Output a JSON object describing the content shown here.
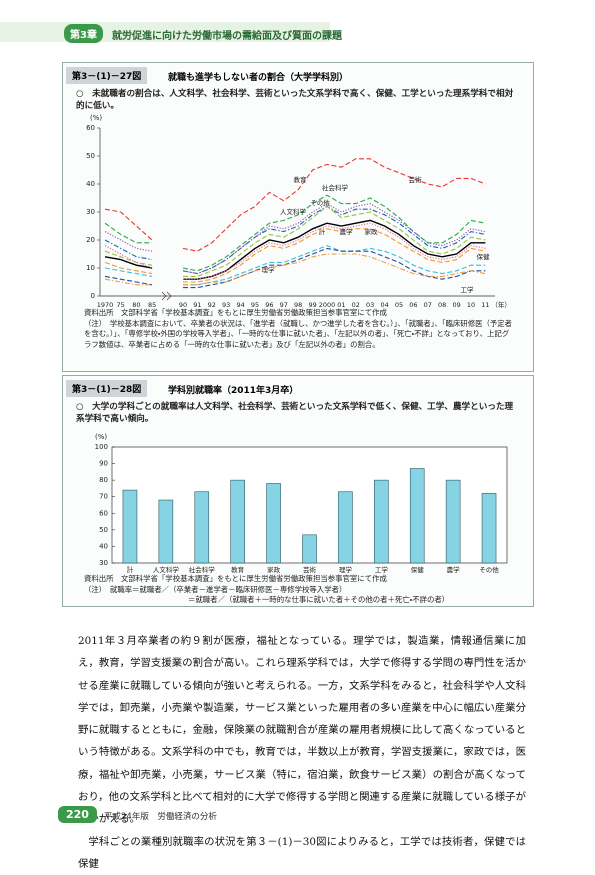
{
  "header": {
    "chapter": "第3章",
    "title": "就労促進に向けた労働市場の需給面及び質面の課題"
  },
  "figures": [
    {
      "number": "第3－(1)－27図",
      "title": "就職も進学もしない者の割合（大学学科別）",
      "summary": "○　未就職者の割合は、人文科学、社会科学、芸術といった文系学科で高く、保健、工学といった理系学科で相対的に低い。",
      "chart_data": {
        "type": "line",
        "y_label": "(%)",
        "x_label": "（年）",
        "categories": [
          "1970",
          "75",
          "80",
          "85",
          "90",
          "91",
          "92",
          "93",
          "94",
          "95",
          "96",
          "97",
          "98",
          "99",
          "2000",
          "01",
          "02",
          "03",
          "04",
          "05",
          "06",
          "07",
          "08",
          "09",
          "10",
          "11"
        ],
        "ylim": [
          0,
          60
        ],
        "yticks": [
          0,
          10,
          20,
          30,
          40,
          50,
          60
        ],
        "series": [
          {
            "name": "芸術",
            "color": "#e8392f",
            "style": "dashed",
            "values": [
              31,
              30,
              25,
              20,
              17,
              16,
              19,
              24,
              29,
              32,
              37,
              34,
              38,
              45,
              47,
              46,
              49,
              49,
              46,
              44,
              42,
              40,
              39,
              42,
              42,
              40
            ]
          },
          {
            "name": "教育",
            "color": "#2aa84a",
            "style": "dashed",
            "values": [
              26,
              22,
              19,
              19,
              10,
              9,
              11,
              14,
              18,
              22,
              26,
              27,
              29,
              33,
              36,
              33,
              33,
              35,
              32,
              28,
              23,
              19,
              19,
              22,
              27,
              26
            ]
          },
          {
            "name": "社会科学",
            "color": "#1c5fb5",
            "style": "dashdot",
            "values": [
              20,
              17,
              14,
              13,
              9,
              8,
              10,
              13,
              17,
              21,
              24,
              23,
              25,
              29,
              32,
              29,
              31,
              31,
              29,
              26,
              22,
              18,
              17,
              19,
              23,
              22
            ]
          },
          {
            "name": "人文科学",
            "color": "#8a4fa8",
            "style": "dotted",
            "values": [
              23,
              20,
              17,
              16,
              9,
              8,
              10,
              13,
              17,
              21,
              25,
              24,
              26,
              30,
              33,
              30,
              32,
              33,
              30,
              27,
              23,
              19,
              18,
              20,
              24,
              23
            ]
          },
          {
            "name": "その他",
            "color": "#9ac13c",
            "style": "dashed",
            "values": [
              16,
              14,
              12,
              11,
              7,
              7,
              9,
              11,
              15,
              19,
              22,
              21,
              24,
              28,
              32,
              28,
              29,
              30,
              27,
              24,
              20,
              16,
              15,
              17,
              21,
              20
            ]
          },
          {
            "name": "計",
            "color": "#000000",
            "style": "solid",
            "values": [
              14,
              13,
              11,
              10,
              6,
              6,
              7,
              9,
              13,
              17,
              20,
              19,
              21,
              24,
              26,
              25,
              26,
              27,
              25,
              22,
              18,
              15,
              14,
              15,
              19,
              19
            ]
          },
          {
            "name": "農学",
            "color": "#f09a2a",
            "style": "dashed",
            "values": [
              12,
              10,
              9,
              8,
              5,
              5,
              6,
              8,
              11,
              15,
              18,
              17,
              19,
              22,
              24,
              23,
              24,
              24,
              22,
              19,
              16,
              13,
              12,
              13,
              17,
              16
            ]
          },
          {
            "name": "家政",
            "color": "#e06a9a",
            "style": "dotted",
            "values": [
              18,
              15,
              12,
              10,
              6,
              6,
              7,
              9,
              12,
              16,
              19,
              18,
              20,
              23,
              25,
              24,
              25,
              26,
              24,
              21,
              17,
              14,
              13,
              14,
              18,
              17
            ]
          },
          {
            "name": "理学",
            "color": "#3cc0d8",
            "style": "dashed",
            "values": [
              10,
              9,
              8,
              7,
              4,
              4,
              5,
              6,
              8,
              10,
              12,
              12,
              14,
              16,
              18,
              16,
              16,
              17,
              16,
              14,
              11,
              9,
              8,
              9,
              11,
              11
            ]
          },
          {
            "name": "工学",
            "color": "#2a4aa0",
            "style": "dashed",
            "values": [
              7,
              6,
              5,
              4,
              3,
              3,
              4,
              5,
              7,
              9,
              11,
              11,
              13,
              15,
              17,
              16,
              16,
              16,
              14,
              12,
              9,
              7,
              6,
              7,
              9,
              9
            ]
          },
          {
            "name": "保健",
            "color": "#e8a040",
            "style": "dashdot",
            "values": [
              6,
              5,
              4,
              4,
              4,
              4,
              5,
              5,
              7,
              9,
              10,
              11,
              12,
              14,
              15,
              15,
              15,
              14,
              12,
              10,
              8,
              7,
              7,
              8,
              9,
              8
            ]
          }
        ]
      },
      "notes": [
        "資料出所　文部科学省「学校基本調査」をもとに厚生労働省労働政策担当参事官室にて作成",
        "（注）　学校基本調査において、卒業者の状況は、「進学者（就職し、かつ進学した者を含む。）」、「就職者」、「臨床研修医（予定者を含む。）」、「専修学校・外国の学校等入学者」、「一時的な仕事に就いた者」、「左記以外の者」、「死亡・不詳」となっており、上記グラフ数値は、卒業者に占める「一時的な仕事に就いた者」及び「左記以外の者」の割合。"
      ]
    },
    {
      "number": "第3－(1)－28図",
      "title": "学科別就職率（2011年3月卒）",
      "summary": "○　大学の学科ごとの就職率は人文科学、社会科学、芸術といった文系学科で低く、保健、工学、農学といった理系学科で高い傾向。",
      "chart_data": {
        "type": "bar",
        "y_label": "(%)",
        "categories": [
          "計",
          "人文科学",
          "社会科学",
          "教育",
          "家政",
          "芸術",
          "理学",
          "工学",
          "保健",
          "農学",
          "その他"
        ],
        "values": [
          74,
          68,
          73,
          80,
          78,
          47,
          73,
          80,
          87,
          80,
          72
        ],
        "color": "#86d3e3",
        "ylim": [
          30,
          100
        ],
        "yticks": [
          30,
          40,
          50,
          60,
          70,
          80,
          90,
          100
        ]
      },
      "notes": [
        "資料出所　文部科学省「学校基本調査」をもとに厚生労働省労働政策担当参事官室にて作成",
        "（注）　就職率＝就職者／（卒業者－進学者－臨床研修医－専修学校等入学者）",
        "＝就職者／（就職者＋一時的な仕事に就いた者＋その他の者＋死亡・不詳の者）"
      ]
    }
  ],
  "body": [
    "2011年３月卒業者の約９割が医療，福祉となっている。理学では，製造業，情報通信業に加え，教育，学習支援業の割合が高い。これら理系学科では，大学で修得する学問の専門性を活かせる産業に就職している傾向が強いと考えられる。一方，文系学科をみると，社会科学や人文科学では，卸売業，小売業や製造業，サービス業といった雇用者の多い産業を中心に幅広い産業分野に就職するとともに，金融，保険業の就職割合が産業の雇用者規模に比して高くなっているという特徴がある。文系学科の中でも，教育では，半数以上が教育，学習支援業に，家政では，医療，福祉や卸売業，小売業，サービス業（特に，宿泊業，飲食サービス業）の割合が高くなっており，他の文系学科と比べて相対的に大学で修得する学問と関連する産業に就職している様子がうかがえる。",
    "学科ごとの業種別就職率の状況を第３－(1)－30図によりみると，工学では技術者，保健では保健"
  ],
  "footer": {
    "page": "220",
    "publication": "平成24年版　労働経済の分析"
  }
}
